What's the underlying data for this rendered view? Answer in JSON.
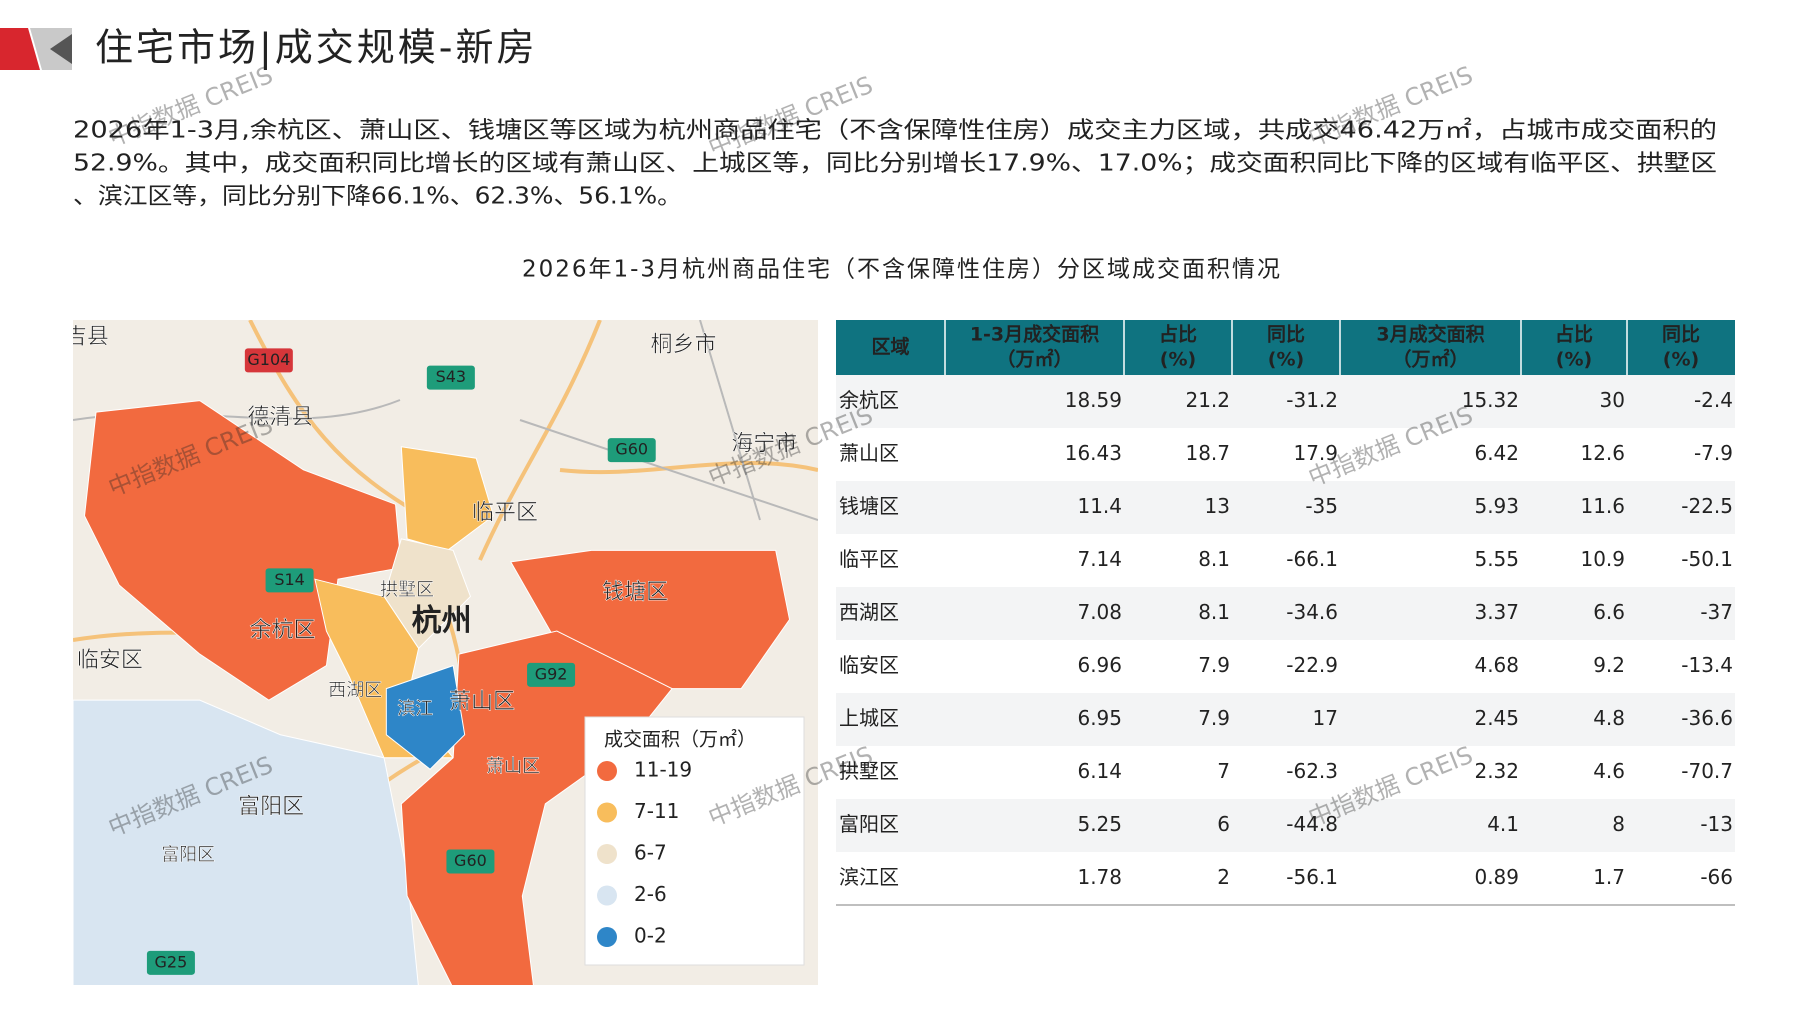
{
  "header": {
    "title": "住宅市场|成交规模-新房"
  },
  "paragraph": {
    "lines": [
      "2026年1-3月,余杭区、萧山区、钱塘区等区域为杭州商品住宅（不含保障性住房）成交主力区域，共成交46.42万㎡，占城市成交面积的",
      "52.9%。其中，成交面积同比增长的区域有萧山区、上城区等，同比分别增长17.9%、17.0%；成交面积同比下降的区域有临平区、拱墅区",
      "、滨江区等，同比分别下降66.1%、62.3%、56.1%。"
    ]
  },
  "figure_title": "2026年1-3月杭州商品住宅（不含保障性住房）分区域成交面积情况",
  "watermark": "中指数据 CREIS",
  "map": {
    "labels": [
      "吉县",
      "G104",
      "S43",
      "桐乡市",
      "德清县",
      "G60",
      "海宁市",
      "临平区",
      "拱墅区",
      "杭州",
      "S14",
      "余杭区",
      "钱塘区",
      "临安区",
      "西湖区",
      "滨江",
      "萧山区",
      "G92",
      "富阳区",
      "富阳区",
      "G60",
      "G25",
      "萧山区"
    ],
    "legend": {
      "title": "成交面积（万㎡）",
      "items": [
        {
          "label": "11-19",
          "color": "#f26a3f"
        },
        {
          "label": "7-11",
          "color": "#f8bd5c"
        },
        {
          "label": "6-7",
          "color": "#efe2cb"
        },
        {
          "label": "2-6",
          "color": "#d8e5f1"
        },
        {
          "label": "0-2",
          "color": "#2e86c8"
        }
      ]
    }
  },
  "table": {
    "header": [
      [
        "区域"
      ],
      [
        "1-3月成交面积",
        "（万㎡）"
      ],
      [
        "占比",
        "(%)"
      ],
      [
        "同比",
        "(%)"
      ],
      [
        "3月成交面积",
        "（万㎡）"
      ],
      [
        "占比",
        "(%)"
      ],
      [
        "同比",
        "(%)"
      ]
    ],
    "rows": [
      [
        "余杭区",
        18.59,
        21.2,
        -31.2,
        15.32,
        30,
        -2.4
      ],
      [
        "萧山区",
        16.43,
        18.7,
        17.9,
        6.42,
        12.6,
        -7.9
      ],
      [
        "钱塘区",
        11.4,
        13,
        -35,
        5.93,
        11.6,
        -22.5
      ],
      [
        "临平区",
        7.14,
        8.1,
        -66.1,
        5.55,
        10.9,
        -50.1
      ],
      [
        "西湖区",
        7.08,
        8.1,
        -34.6,
        3.37,
        6.6,
        -37
      ],
      [
        "临安区",
        6.96,
        7.9,
        -22.9,
        4.68,
        9.2,
        -13.4
      ],
      [
        "上城区",
        6.95,
        7.9,
        17,
        2.45,
        4.8,
        -36.6
      ],
      [
        "拱墅区",
        6.14,
        7,
        -62.3,
        2.32,
        4.6,
        -70.7
      ],
      [
        "富阳区",
        5.25,
        6,
        -44.8,
        4.1,
        8,
        -13
      ],
      [
        "滨江区",
        1.78,
        2,
        -56.1,
        0.89,
        1.7,
        -66
      ]
    ]
  }
}
